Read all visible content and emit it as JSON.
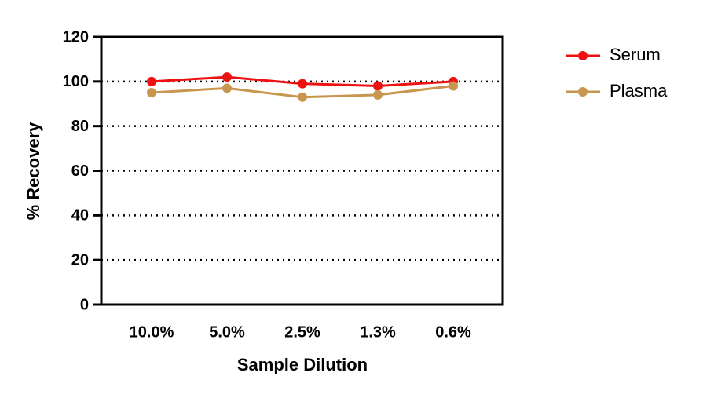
{
  "chart_data": {
    "type": "line",
    "x_label": "Sample Dilution",
    "y_label": "% Recovery",
    "categories": [
      "10.0%",
      "5.0%",
      "2.5%",
      "1.3%",
      "0.6%"
    ],
    "series": [
      {
        "name": "Serum",
        "color": "#ee1111",
        "values": [
          100,
          102,
          99,
          98,
          100
        ]
      },
      {
        "name": "Plasma",
        "color": "#c8964e",
        "values": [
          95,
          97,
          93,
          94,
          98
        ]
      }
    ],
    "ylim": [
      0,
      120
    ],
    "yticks": [
      0,
      20,
      40,
      60,
      80,
      100,
      120
    ],
    "grid": true,
    "legend": "right"
  }
}
